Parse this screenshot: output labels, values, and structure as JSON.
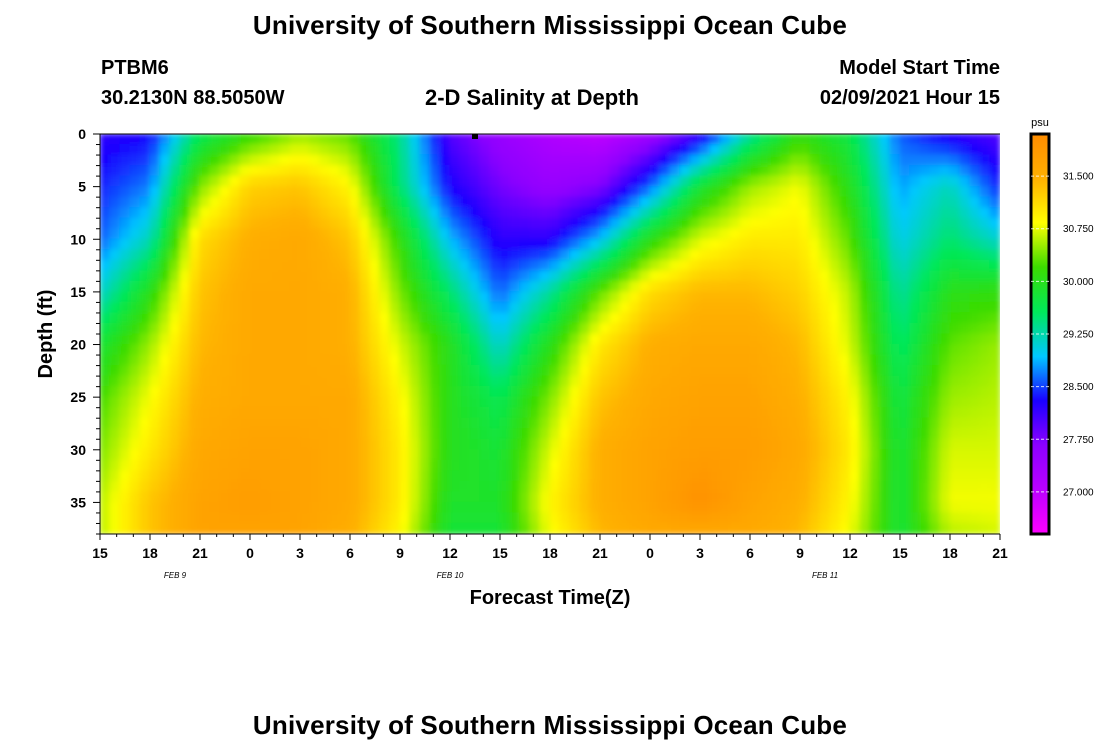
{
  "header": {
    "title": "University of Southern Mississippi Ocean Cube",
    "station_id": "PTBM6",
    "station_coords": "30.2130N 88.5050W",
    "model_label": "Model Start Time",
    "model_time": "02/09/2021 Hour 15"
  },
  "footer": {
    "title": "University of Southern Mississippi Ocean Cube"
  },
  "chart_data": {
    "type": "heatmap",
    "title": "2-D Salinity at Depth",
    "xlabel": "Forecast Time(Z)",
    "ylabel": "Depth (ft)",
    "x_ticks": [
      "15",
      "18",
      "21",
      "0",
      "3",
      "6",
      "9",
      "12",
      "15",
      "18",
      "21",
      "0",
      "3",
      "6",
      "9",
      "12",
      "15",
      "18",
      "21"
    ],
    "x_range_hours": [
      0,
      54
    ],
    "date_labels": [
      {
        "text": "FEB 9",
        "hour": 4.5
      },
      {
        "text": "FEB 10",
        "hour": 21
      },
      {
        "text": "FEB 11",
        "hour": 43.5
      }
    ],
    "y_ticks": [
      0,
      5,
      10,
      15,
      20,
      25,
      30,
      35
    ],
    "ylim": [
      0,
      38
    ],
    "colorbar": {
      "unit": "psu",
      "ticks": [
        "31.500",
        "30.750",
        "30.000",
        "29.250",
        "28.500",
        "27.750",
        "27.000"
      ],
      "tick_values": [
        31.5,
        30.75,
        30.0,
        29.25,
        28.5,
        27.75,
        27.0
      ],
      "range": [
        26.4,
        32.1
      ],
      "colors": [
        "#ff00ff",
        "#bb00ff",
        "#8c00ff",
        "#1a00ff",
        "#00c8ff",
        "#00e85a",
        "#3cdc00",
        "#ffff00",
        "#ffb000",
        "#ff8c00"
      ]
    },
    "marker": {
      "hour": 22.5,
      "depth": 0
    },
    "grid_hours": [
      0,
      3,
      6,
      9,
      12,
      15,
      18,
      21,
      24,
      27,
      30,
      33,
      36,
      39,
      42,
      45,
      48,
      51,
      54
    ],
    "grid_depths": [
      0,
      5,
      10,
      15,
      20,
      25,
      30,
      35,
      38
    ],
    "salinity_psu": [
      [
        28.2,
        28.3,
        29.6,
        30.1,
        30.5,
        30.3,
        29.4,
        28.0,
        27.5,
        27.2,
        27.0,
        27.4,
        28.1,
        29.3,
        30.1,
        29.7,
        28.6,
        28.2,
        28.0
      ],
      [
        28.4,
        28.7,
        30.4,
        31.2,
        31.3,
        30.9,
        29.5,
        28.3,
        27.8,
        27.5,
        27.7,
        28.6,
        29.8,
        30.5,
        30.8,
        30.0,
        28.8,
        29.2,
        28.4
      ],
      [
        28.6,
        29.2,
        31.1,
        31.5,
        31.6,
        31.3,
        30.1,
        28.9,
        28.2,
        28.2,
        28.9,
        30.0,
        30.7,
        31.0,
        31.0,
        30.3,
        29.0,
        29.5,
        29.1
      ],
      [
        29.1,
        30.0,
        31.3,
        31.6,
        31.6,
        31.5,
        30.4,
        29.5,
        28.6,
        29.3,
        30.3,
        31.1,
        31.4,
        31.4,
        31.2,
        30.6,
        29.3,
        30.0,
        30.1
      ],
      [
        29.8,
        30.5,
        31.4,
        31.6,
        31.6,
        31.5,
        30.7,
        30.0,
        29.1,
        30.0,
        31.0,
        31.5,
        31.6,
        31.6,
        31.4,
        30.7,
        29.5,
        30.3,
        30.5
      ],
      [
        30.2,
        30.8,
        31.5,
        31.6,
        31.6,
        31.6,
        30.9,
        30.0,
        29.6,
        30.4,
        31.3,
        31.6,
        31.7,
        31.7,
        31.5,
        30.9,
        29.7,
        30.5,
        30.6
      ],
      [
        30.4,
        31.0,
        31.6,
        31.7,
        31.7,
        31.6,
        31.0,
        30.0,
        29.8,
        30.7,
        31.5,
        31.7,
        31.8,
        31.8,
        31.6,
        31.0,
        29.8,
        30.7,
        30.7
      ],
      [
        30.6,
        31.3,
        31.7,
        31.8,
        31.7,
        31.6,
        31.0,
        29.9,
        29.9,
        30.9,
        31.5,
        31.7,
        32.0,
        31.7,
        31.5,
        30.9,
        29.8,
        30.8,
        30.8
      ],
      [
        30.6,
        31.3,
        31.7,
        31.7,
        31.7,
        31.5,
        30.9,
        29.8,
        29.8,
        30.8,
        31.4,
        31.6,
        31.6,
        31.6,
        31.4,
        30.8,
        29.8,
        30.6,
        30.7
      ]
    ]
  }
}
